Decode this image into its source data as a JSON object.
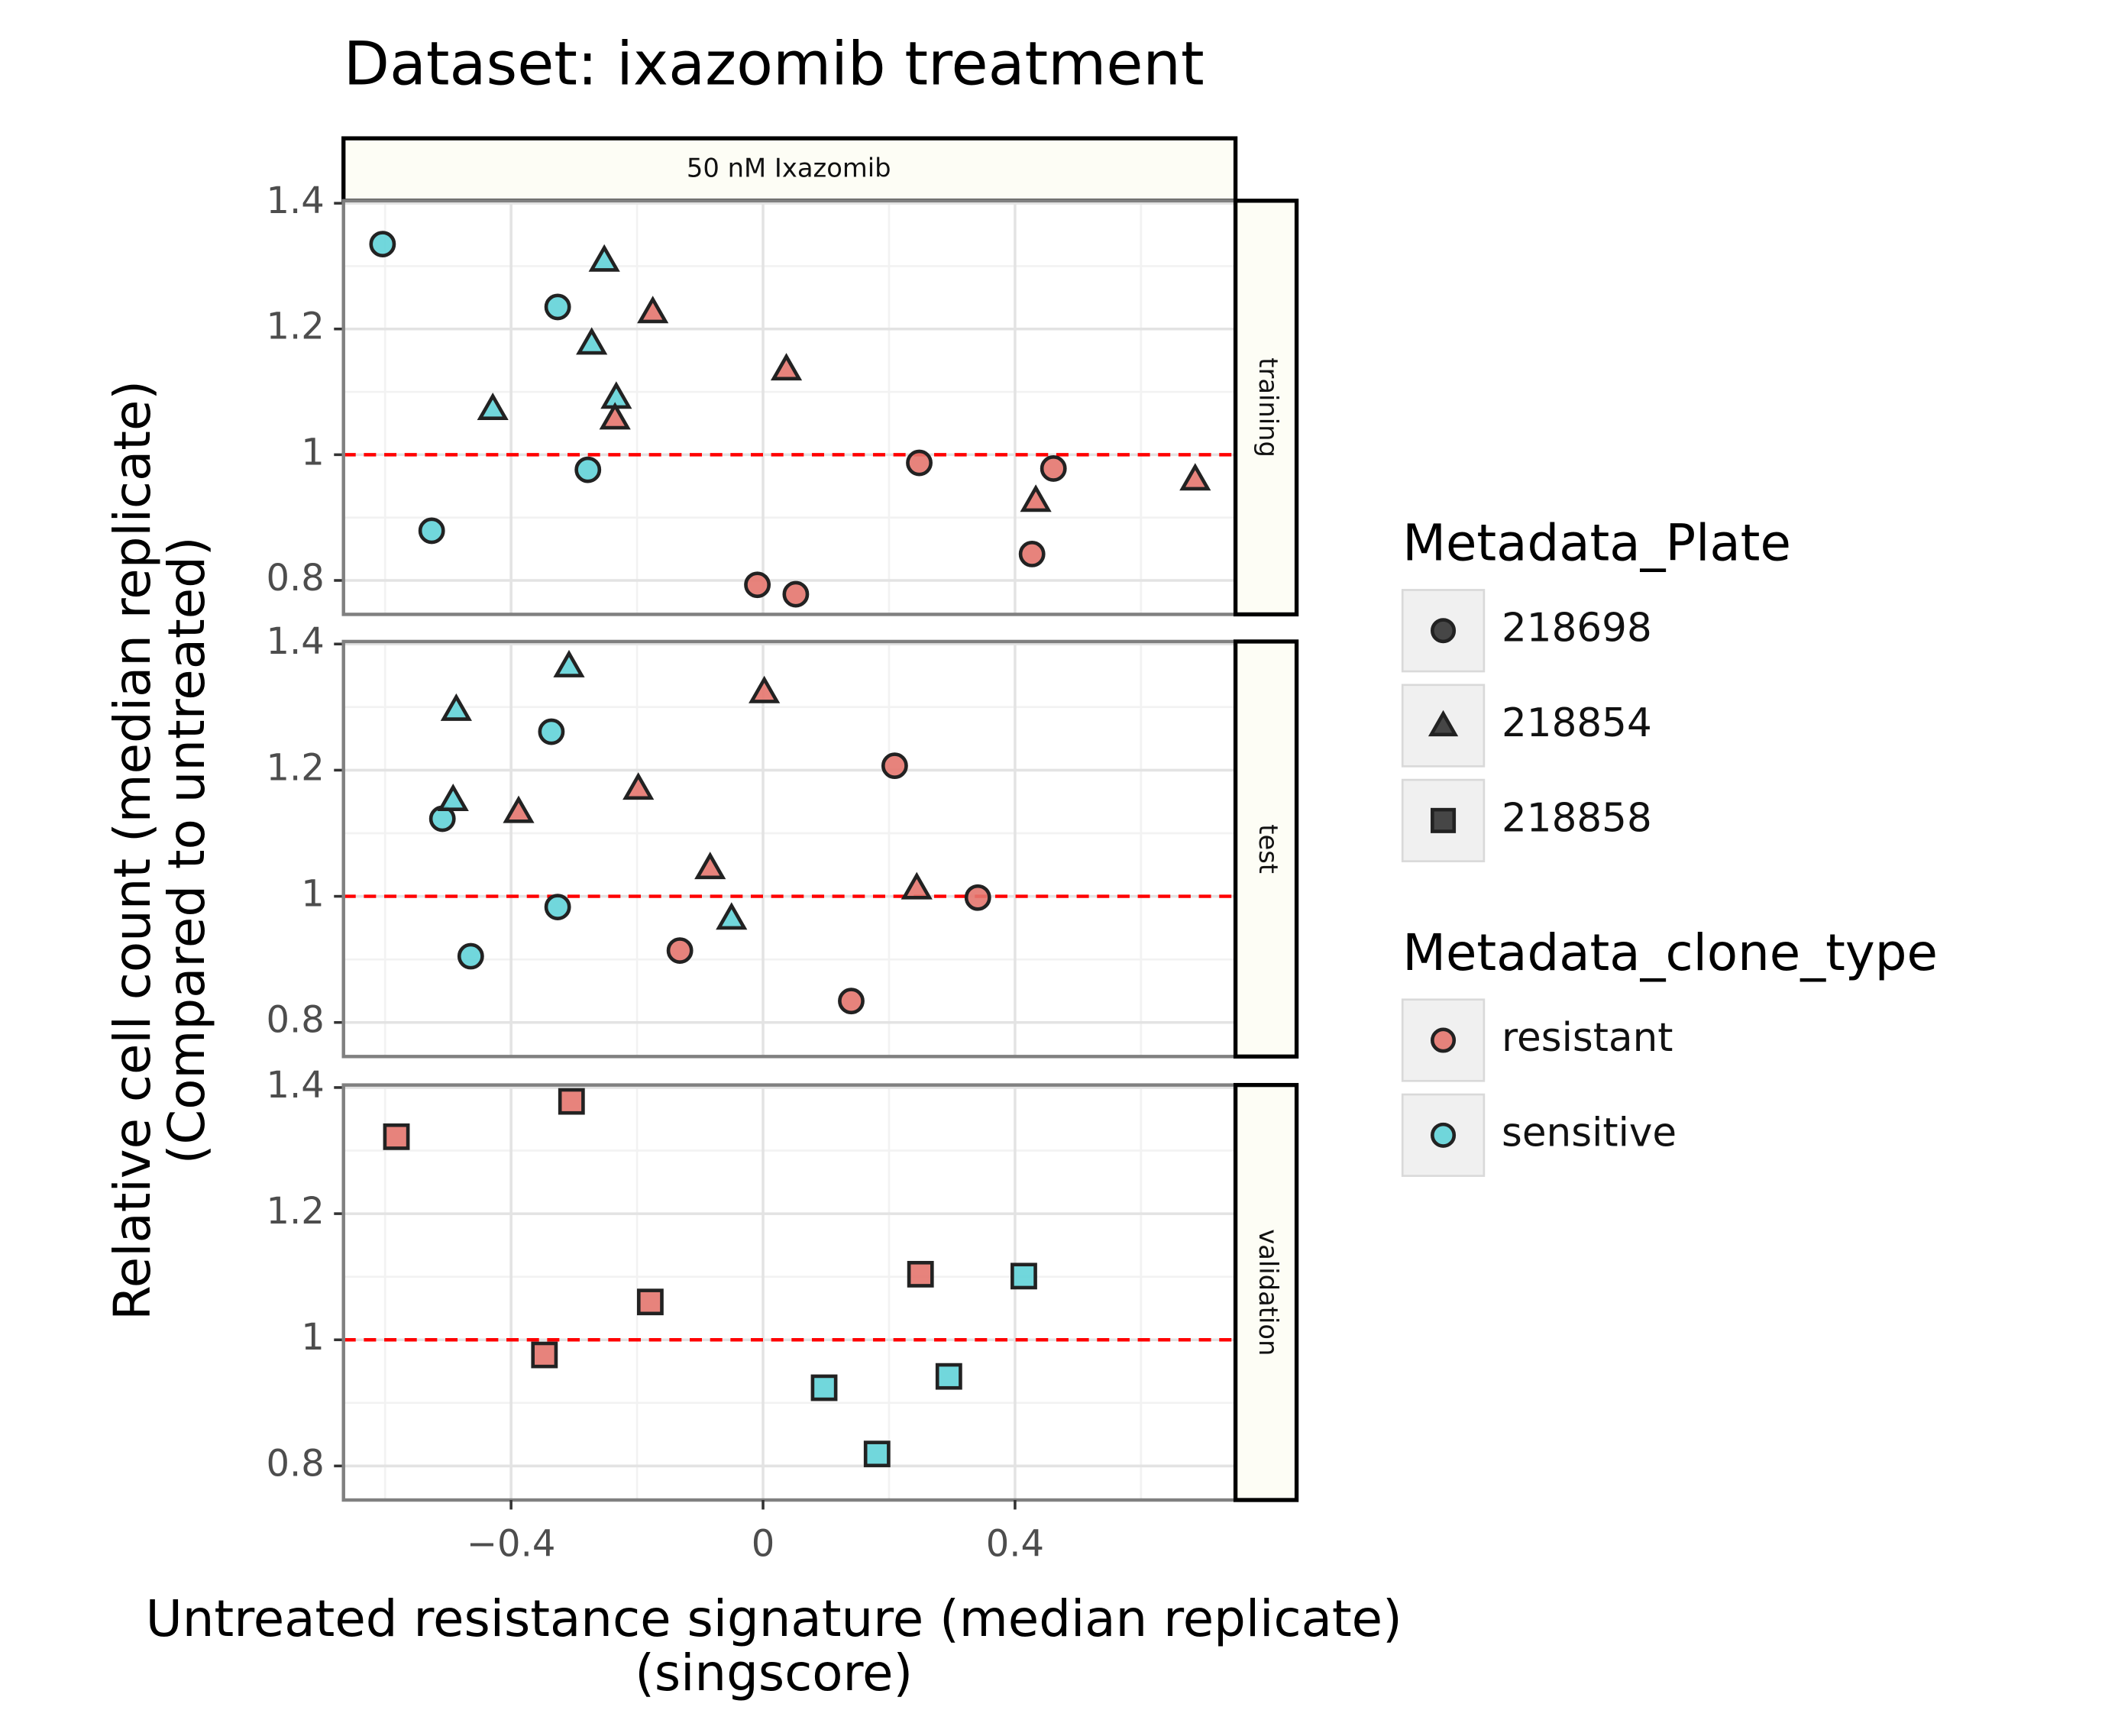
{
  "chart_data": {
    "type": "scatter",
    "title": "Dataset: ixazomib treatment",
    "xlabel": [
      "Untreated resistance signature (median replicate)",
      "(singscore)"
    ],
    "ylabel": [
      "Relative cell count (median replicate)",
      "(Compared to untreated)"
    ],
    "column_strip": "50 nM Ixazomib",
    "xlim": [
      -0.666,
      0.75
    ],
    "xticks": [
      {
        "value": -0.4,
        "label": "−0.4"
      },
      0,
      0.4
    ],
    "ylim": [
      0.746,
      1.404
    ],
    "yticks": [
      0.8,
      1,
      1.2,
      1.4
    ],
    "reference_line": {
      "y": 1,
      "color": "#ff0000"
    },
    "grid": true,
    "shapes": {
      "218698": "circle",
      "218854": "triangle",
      "218858": "square"
    },
    "colors": {
      "resistant": "#e4756e",
      "sensitive": "#62d3d8"
    },
    "legends": [
      {
        "title": "Metadata_Plate",
        "entries": [
          "218698",
          "218854",
          "218858"
        ]
      },
      {
        "title": "Metadata_clone_type",
        "entries": [
          "resistant",
          "sensitive"
        ]
      }
    ],
    "panels": [
      {
        "label": "training",
        "series": [
          {
            "plate": "218698",
            "clone_type": "sensitive",
            "x": [
              -0.604,
              -0.326,
              -0.278,
              -0.526
            ],
            "y": [
              1.335,
              1.235,
              0.976,
              0.879
            ]
          },
          {
            "plate": "218854",
            "clone_type": "sensitive",
            "x": [
              -0.252,
              -0.272,
              -0.233,
              -0.429
            ],
            "y": [
              1.309,
              1.177,
              1.091,
              1.073
            ]
          },
          {
            "plate": "218854",
            "clone_type": "resistant",
            "x": [
              -0.175,
              -0.235,
              0.037,
              0.433,
              0.686
            ],
            "y": [
              1.227,
              1.058,
              1.136,
              0.927,
              0.961
            ]
          },
          {
            "plate": "218698",
            "clone_type": "resistant",
            "x": [
              0.248,
              0.461,
              0.427,
              -0.009,
              0.052
            ],
            "y": [
              0.987,
              0.978,
              0.842,
              0.793,
              0.778
            ]
          }
        ]
      },
      {
        "label": "test",
        "series": [
          {
            "plate": "218698",
            "clone_type": "sensitive",
            "x": [
              -0.336,
              -0.509,
              -0.326,
              -0.464
            ],
            "y": [
              1.261,
              1.123,
              0.983,
              0.905
            ]
          },
          {
            "plate": "218854",
            "clone_type": "sensitive",
            "x": [
              -0.308,
              -0.487,
              -0.492,
              -0.05
            ],
            "y": [
              1.365,
              1.296,
              1.153,
              0.965
            ]
          },
          {
            "plate": "218854",
            "clone_type": "resistant",
            "x": [
              0.002,
              -0.198,
              -0.388,
              -0.084,
              0.244
            ],
            "y": [
              1.324,
              1.171,
              1.134,
              1.045,
              1.013
            ]
          },
          {
            "plate": "218698",
            "clone_type": "resistant",
            "x": [
              0.209,
              0.341,
              -0.132,
              0.14
            ],
            "y": [
              1.207,
              0.998,
              0.914,
              0.834
            ]
          }
        ]
      },
      {
        "label": "validation",
        "series": [
          {
            "plate": "218858",
            "clone_type": "resistant",
            "x": [
              -0.582,
              -0.304,
              -0.179,
              -0.347,
              0.25
            ],
            "y": [
              1.322,
              1.378,
              1.06,
              0.976,
              1.104
            ]
          },
          {
            "plate": "218858",
            "clone_type": "sensitive",
            "x": [
              0.414,
              0.097,
              0.295,
              0.181
            ],
            "y": [
              1.101,
              0.924,
              0.942,
              0.819
            ]
          }
        ]
      }
    ]
  }
}
